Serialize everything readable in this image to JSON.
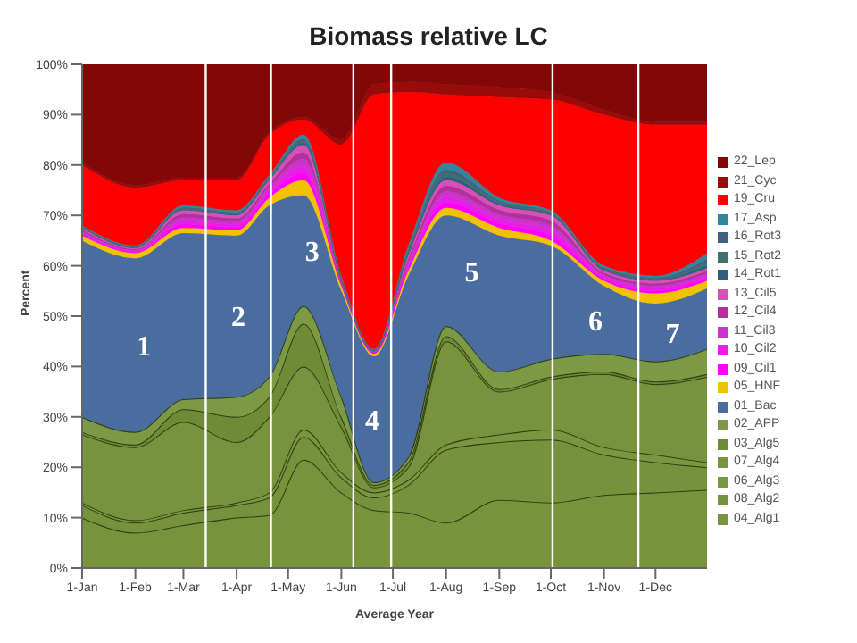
{
  "chart_data": {
    "type": "area",
    "title": "Biomass relative LC",
    "xlabel": "Average Year",
    "ylabel": "Percent",
    "stacked": true,
    "legend": "right",
    "x": [
      "--01-01",
      "--02-01",
      "--03-01",
      "--04-01",
      "--04-20",
      "--05-10",
      "--06-01",
      "--06-20",
      "--07-10",
      "--08-01",
      "--09-01",
      "--10-01",
      "--11-01",
      "--12-01",
      "--12-31"
    ],
    "xlim": [
      "--01-01",
      "--12-31"
    ],
    "xticks": [
      {
        "value": "--01-01",
        "label": "1-Jan"
      },
      {
        "value": "--02-01",
        "label": "1-Feb"
      },
      {
        "value": "--03-01",
        "label": "1-Mar"
      },
      {
        "value": "--04-01",
        "label": "1-Apr"
      },
      {
        "value": "--05-01",
        "label": "1-May"
      },
      {
        "value": "--06-01",
        "label": "1-Jun"
      },
      {
        "value": "--07-01",
        "label": "1-Jul"
      },
      {
        "value": "--08-01",
        "label": "1-Aug"
      },
      {
        "value": "--09-01",
        "label": "1-Sep"
      },
      {
        "value": "--10-01",
        "label": "1-Oct"
      },
      {
        "value": "--11-01",
        "label": "1-Nov"
      },
      {
        "value": "--12-01",
        "label": "1-Dec"
      }
    ],
    "ylim": [
      0,
      100
    ],
    "yticks": [
      {
        "value": 0,
        "label": "0%"
      },
      {
        "value": 10,
        "label": "10%"
      },
      {
        "value": 20,
        "label": "20%"
      },
      {
        "value": 30,
        "label": "30%"
      },
      {
        "value": 40,
        "label": "40%"
      },
      {
        "value": 50,
        "label": "50%"
      },
      {
        "value": 60,
        "label": "60%"
      },
      {
        "value": 70,
        "label": "70%"
      },
      {
        "value": 80,
        "label": "80%"
      },
      {
        "value": 90,
        "label": "90%"
      },
      {
        "value": 100,
        "label": "100%"
      }
    ],
    "series": [
      {
        "name": "04_Alg1",
        "color": "#77933c",
        "values": [
          10,
          7,
          8.5,
          10,
          10.5,
          21.5,
          15,
          11.5,
          11,
          9,
          13.5,
          13,
          14.5,
          15,
          15.5
        ]
      },
      {
        "name": "08_Alg2",
        "color": "#76923c",
        "values": [
          2.5,
          2,
          2.5,
          2.5,
          3.5,
          4.5,
          3,
          2.5,
          5.5,
          14.5,
          11.5,
          12.5,
          8,
          6,
          4.5
        ]
      },
      {
        "name": "06_Alg3",
        "color": "#7a9640",
        "values": [
          0.5,
          0.5,
          0.5,
          0.5,
          1,
          1.5,
          1,
          1,
          1,
          1,
          1.5,
          2,
          1.5,
          1.5,
          1
        ]
      },
      {
        "name": "07_Alg4",
        "color": "#77933d",
        "values": [
          13.5,
          14.5,
          17.5,
          12,
          15,
          12.5,
          9,
          1,
          2.5,
          20.5,
          8.5,
          10,
          14.5,
          14,
          17
        ]
      },
      {
        "name": "03_Alg5",
        "color": "#6f8b36",
        "values": [
          0.5,
          0.5,
          2.5,
          5,
          4,
          8.5,
          2,
          0.5,
          1,
          1,
          0.5,
          0.5,
          0.5,
          0.5,
          0.5
        ]
      },
      {
        "name": "02_APP",
        "color": "#7c9a44",
        "values": [
          3,
          2.5,
          2,
          4,
          4,
          3.5,
          4,
          0.5,
          1,
          2,
          3.5,
          3.5,
          3.5,
          4,
          5
        ]
      },
      {
        "name": "01_Bac",
        "color": "#4a6c9e",
        "values": [
          35,
          34.5,
          33,
          32,
          34,
          22,
          21,
          25,
          36,
          22,
          27,
          22.5,
          13.5,
          11.5,
          12
        ]
      },
      {
        "name": "05_HNF",
        "color": "#f2c100",
        "values": [
          1,
          1,
          1,
          1,
          1.5,
          3,
          1,
          0.5,
          1,
          1.5,
          1.5,
          1,
          1,
          2,
          1.5
        ]
      },
      {
        "name": "09_Cil1",
        "color": "#ff00ff",
        "values": [
          0.3,
          0.2,
          0.7,
          0.6,
          0.7,
          1.4,
          0.2,
          0.1,
          0.6,
          1.1,
          0.9,
          1,
          0.4,
          0.5,
          0.5
        ]
      },
      {
        "name": "10_Cil2",
        "color": "#e61ee6",
        "values": [
          0.3,
          0.2,
          0.7,
          0.6,
          0.7,
          1.4,
          0.2,
          0.1,
          0.6,
          1.1,
          0.9,
          1,
          0.4,
          0.5,
          0.5
        ]
      },
      {
        "name": "11_Cil3",
        "color": "#cc33cc",
        "values": [
          0.3,
          0.2,
          0.7,
          0.6,
          0.7,
          1.4,
          0.2,
          0.1,
          0.6,
          1.1,
          0.9,
          1,
          0.4,
          0.5,
          0.5
        ]
      },
      {
        "name": "12_Cil4",
        "color": "#b4309f",
        "values": [
          0.3,
          0.2,
          0.7,
          0.6,
          0.7,
          1.4,
          0.2,
          0.1,
          0.6,
          1.1,
          0.9,
          1,
          0.4,
          0.5,
          0.5
        ]
      },
      {
        "name": "13_Cil5",
        "color": "#d94fb8",
        "values": [
          0.3,
          0.2,
          0.7,
          0.6,
          0.7,
          1.4,
          0.2,
          0.1,
          0.6,
          1.1,
          0.9,
          1,
          0.4,
          0.5,
          0.5
        ]
      },
      {
        "name": "14_Rot1",
        "color": "#2f5f7f",
        "values": [
          0.1,
          0.1,
          0.2,
          0.2,
          0.2,
          0.4,
          0.2,
          0.1,
          0.4,
          0.7,
          0.3,
          0.2,
          0.2,
          0.2,
          0.6
        ]
      },
      {
        "name": "15_Rot2",
        "color": "#3f6f6f",
        "values": [
          0.1,
          0.1,
          0.2,
          0.2,
          0.2,
          0.4,
          0.2,
          0.1,
          0.4,
          0.7,
          0.3,
          0.2,
          0.2,
          0.2,
          0.6
        ]
      },
      {
        "name": "16_Rot3",
        "color": "#406080",
        "values": [
          0.1,
          0.1,
          0.2,
          0.2,
          0.2,
          0.4,
          0.2,
          0.1,
          0.4,
          0.7,
          0.3,
          0.2,
          0.2,
          0.2,
          0.6
        ]
      },
      {
        "name": "17_Asp",
        "color": "#31859c",
        "values": [
          0.2,
          0.2,
          0.4,
          0.4,
          0.4,
          0.8,
          0.4,
          0.2,
          0.8,
          1.4,
          0.6,
          0.4,
          0.4,
          0.4,
          1.2
        ]
      },
      {
        "name": "19_Cru",
        "color": "#ff0000",
        "values": [
          12,
          11.5,
          5,
          6,
          8,
          3,
          26,
          50.5,
          30.5,
          13.5,
          20,
          22,
          30,
          30,
          25.5
        ]
      },
      {
        "name": "21_Cyc",
        "color": "#990a0a",
        "values": [
          0.5,
          0.5,
          0.5,
          0.5,
          0.5,
          0.5,
          1,
          2,
          2,
          2,
          2,
          1.5,
          1,
          0.5,
          0.5
        ]
      },
      {
        "name": "22_Lep",
        "color": "#820808",
        "values": [
          19.5,
          24,
          22.5,
          22.5,
          13.5,
          10.5,
          15,
          4,
          3.5,
          4,
          4.5,
          5.5,
          9,
          11.5,
          11.5
        ]
      }
    ],
    "ref_lines": [
      {
        "axis": "x",
        "value": "--03-14",
        "color": "#ffffff"
      },
      {
        "axis": "x",
        "value": "--04-21",
        "color": "#ffffff"
      },
      {
        "axis": "x",
        "value": "--06-08",
        "color": "#ffffff"
      },
      {
        "axis": "x",
        "value": "--06-30",
        "color": "#ffffff"
      },
      {
        "axis": "x",
        "value": "--10-02",
        "color": "#ffffff"
      },
      {
        "axis": "x",
        "value": "--11-21",
        "color": "#ffffff"
      }
    ],
    "annotations": [
      "1",
      "2",
      "3",
      "4",
      "5",
      "6",
      "7"
    ]
  }
}
